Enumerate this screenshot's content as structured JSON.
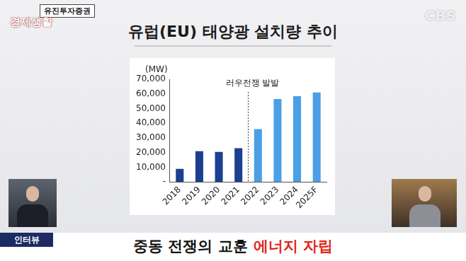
{
  "header": {
    "source": "유진투자증권",
    "logo": "경제생활",
    "channel": "CBS"
  },
  "chart_data": {
    "type": "bar",
    "title": "유럽(EU) 태양광 설치량 추이",
    "ylabel": "(MW)",
    "categories": [
      "2018",
      "2019",
      "2020",
      "2021",
      "2022",
      "2023",
      "2024",
      "2025F"
    ],
    "values": [
      9000,
      21000,
      20500,
      23000,
      36000,
      56500,
      58500,
      61000
    ],
    "colors": [
      "#1c3f8f",
      "#1c3f8f",
      "#1c3f8f",
      "#1c3f8f",
      "#4a9fe6",
      "#4a9fe6",
      "#4a9fe6",
      "#4a9fe6"
    ],
    "ylim": [
      0,
      70000
    ],
    "yticks": [
      {
        "value": 0,
        "label": "-"
      },
      {
        "value": 10000,
        "label": "10,000"
      },
      {
        "value": 20000,
        "label": "20,000"
      },
      {
        "value": 30000,
        "label": "30,000"
      },
      {
        "value": 40000,
        "label": "40,000"
      },
      {
        "value": 50000,
        "label": "50,000"
      },
      {
        "value": 60000,
        "label": "60,000"
      },
      {
        "value": 70000,
        "label": "70,000"
      }
    ],
    "grid": false,
    "annotations": [
      {
        "text": "러우전쟁 발발",
        "after": "2021"
      }
    ]
  },
  "footer": {
    "tag": "인터뷰",
    "caption": "중동 전쟁의 교훈",
    "highlight": "에너지 자립"
  }
}
